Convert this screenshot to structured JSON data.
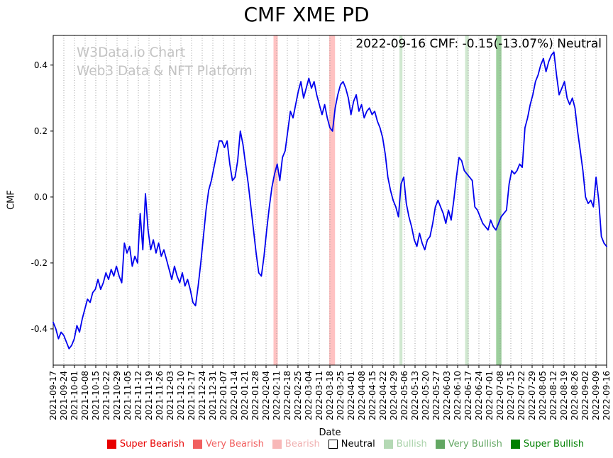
{
  "title": "CMF XME PD",
  "annotation": "2022-09-16 CMF: -0.15(-13.07%) Neutral",
  "watermark": {
    "line1": "W3Data.io Chart",
    "line2": "Web3 Data & NFT Platform"
  },
  "axes": {
    "xlabel": "Date",
    "ylabel": "CMF"
  },
  "legend": {
    "items": [
      {
        "label": "Super Bearish",
        "color": "#e80000",
        "text_color": "#e80000",
        "border": "#e80000"
      },
      {
        "label": "Very Bearish",
        "color": "#f15f5f",
        "text_color": "#f15f5f",
        "border": "#f15f5f"
      },
      {
        "label": "Bearish",
        "color": "#f8b8b8",
        "text_color": "#f0b0b0",
        "border": "#f8b8b8"
      },
      {
        "label": "Neutral",
        "color": "#ffffff",
        "text_color": "#000000",
        "border": "#000000"
      },
      {
        "label": "Bullish",
        "color": "#b4d9b4",
        "text_color": "#a8d2a8",
        "border": "#b4d9b4"
      },
      {
        "label": "Very Bullish",
        "color": "#63a763",
        "text_color": "#63a763",
        "border": "#63a763"
      },
      {
        "label": "Super Bullish",
        "color": "#008000",
        "text_color": "#008000",
        "border": "#008000"
      }
    ]
  },
  "chart_data": {
    "type": "line",
    "title": "CMF XME PD",
    "xlabel": "Date",
    "ylabel": "CMF",
    "line_color": "#0000ee",
    "grid": "vertical-dotted",
    "ylim": [
      -0.51,
      0.49
    ],
    "y_ticks": [
      -0.4,
      -0.2,
      0.0,
      0.2,
      0.4
    ],
    "x_tick_labels": [
      "2021-09-17",
      "2021-09-24",
      "2021-10-01",
      "2021-10-08",
      "2021-10-15",
      "2021-10-22",
      "2021-10-29",
      "2021-11-05",
      "2021-11-12",
      "2021-11-19",
      "2021-11-26",
      "2021-12-03",
      "2021-12-10",
      "2021-12-17",
      "2021-12-24",
      "2021-12-31",
      "2022-01-07",
      "2022-01-14",
      "2022-01-21",
      "2022-01-28",
      "2022-02-04",
      "2022-02-11",
      "2022-02-18",
      "2022-02-25",
      "2022-03-04",
      "2022-03-11",
      "2022-03-18",
      "2022-03-25",
      "2022-04-01",
      "2022-04-08",
      "2022-04-15",
      "2022-04-22",
      "2022-04-29",
      "2022-05-06",
      "2022-05-13",
      "2022-05-20",
      "2022-05-27",
      "2022-06-03",
      "2022-06-10",
      "2022-06-17",
      "2022-06-24",
      "2022-07-01",
      "2022-07-08",
      "2022-07-15",
      "2022-07-22",
      "2022-07-29",
      "2022-08-05",
      "2022-08-12",
      "2022-08-19",
      "2022-08-26",
      "2022-09-02",
      "2022-09-09",
      "2022-09-16"
    ],
    "bands": [
      {
        "type": "bearish",
        "x": 20.9,
        "width": 0.4,
        "color": "rgba(255,120,120,0.45)"
      },
      {
        "type": "bearish",
        "x": 26.2,
        "width": 0.55,
        "color": "rgba(255,120,120,0.45)"
      },
      {
        "type": "bullish",
        "x": 32.67,
        "width": 0.28,
        "color": "rgba(120,190,120,0.35)"
      },
      {
        "type": "bullish",
        "x": 38.87,
        "width": 0.34,
        "color": "rgba(120,190,120,0.35)"
      },
      {
        "type": "very-bullish",
        "x": 41.87,
        "width": 0.5,
        "color": "rgba(60,160,60,0.50)"
      }
    ],
    "series": [
      {
        "name": "CMF",
        "values": [
          -0.38,
          -0.4,
          -0.43,
          -0.41,
          -0.42,
          -0.44,
          -0.46,
          -0.45,
          -0.43,
          -0.39,
          -0.41,
          -0.37,
          -0.34,
          -0.31,
          -0.32,
          -0.29,
          -0.28,
          -0.25,
          -0.28,
          -0.26,
          -0.23,
          -0.25,
          -0.22,
          -0.24,
          -0.21,
          -0.24,
          -0.26,
          -0.14,
          -0.17,
          -0.15,
          -0.21,
          -0.18,
          -0.2,
          -0.05,
          -0.16,
          0.01,
          -0.1,
          -0.16,
          -0.13,
          -0.17,
          -0.14,
          -0.18,
          -0.16,
          -0.19,
          -0.22,
          -0.25,
          -0.21,
          -0.24,
          -0.26,
          -0.23,
          -0.27,
          -0.25,
          -0.28,
          -0.32,
          -0.33,
          -0.27,
          -0.2,
          -0.12,
          -0.04,
          0.02,
          0.05,
          0.09,
          0.13,
          0.17,
          0.17,
          0.15,
          0.17,
          0.1,
          0.05,
          0.06,
          0.11,
          0.2,
          0.16,
          0.1,
          0.04,
          -0.03,
          -0.1,
          -0.17,
          -0.23,
          -0.24,
          -0.18,
          -0.1,
          -0.03,
          0.03,
          0.07,
          0.1,
          0.05,
          0.12,
          0.14,
          0.2,
          0.26,
          0.24,
          0.28,
          0.32,
          0.35,
          0.3,
          0.33,
          0.36,
          0.33,
          0.35,
          0.31,
          0.28,
          0.25,
          0.28,
          0.24,
          0.21,
          0.2,
          0.27,
          0.31,
          0.34,
          0.35,
          0.33,
          0.3,
          0.25,
          0.29,
          0.31,
          0.26,
          0.28,
          0.24,
          0.26,
          0.27,
          0.25,
          0.26,
          0.23,
          0.21,
          0.18,
          0.13,
          0.06,
          0.02,
          -0.01,
          -0.03,
          -0.06,
          0.04,
          0.06,
          -0.02,
          -0.06,
          -0.09,
          -0.13,
          -0.15,
          -0.11,
          -0.14,
          -0.16,
          -0.13,
          -0.12,
          -0.08,
          -0.03,
          -0.01,
          -0.03,
          -0.05,
          -0.08,
          -0.04,
          -0.07,
          -0.01,
          0.06,
          0.12,
          0.11,
          0.08,
          0.07,
          0.06,
          0.05,
          -0.03,
          -0.04,
          -0.06,
          -0.08,
          -0.09,
          -0.1,
          -0.07,
          -0.09,
          -0.1,
          -0.08,
          -0.06,
          -0.05,
          -0.04,
          0.04,
          0.08,
          0.07,
          0.08,
          0.1,
          0.09,
          0.21,
          0.24,
          0.28,
          0.31,
          0.35,
          0.37,
          0.4,
          0.42,
          0.38,
          0.41,
          0.43,
          0.44,
          0.37,
          0.31,
          0.33,
          0.35,
          0.3,
          0.28,
          0.3,
          0.27,
          0.2,
          0.14,
          0.08,
          0.0,
          -0.02,
          -0.01,
          -0.03,
          0.06,
          -0.01,
          -0.12,
          -0.14,
          -0.15
        ]
      }
    ]
  }
}
